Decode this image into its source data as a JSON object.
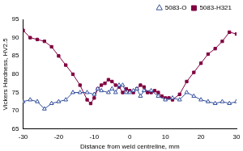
{
  "chart_data": {
    "type": "line",
    "x_label": "Distance from weld centreline, mm",
    "y_label": "Vickers Hardness, HV2.5",
    "xlim": [
      -30,
      30
    ],
    "xticks": [
      -30,
      -20,
      -10,
      0,
      10,
      20,
      30
    ],
    "ylim": [
      65,
      95
    ],
    "yticks": [
      65,
      70,
      75,
      80,
      85,
      90,
      95
    ],
    "grid": false,
    "legend": "top-right",
    "series": [
      {
        "name": "5083-O",
        "color": "#34509c",
        "marker": "triangle",
        "x": [
          -30,
          -28,
          -26,
          -24,
          -22,
          -20,
          -18,
          -16,
          -14,
          -12,
          -10,
          -9,
          -8,
          -6,
          -5,
          -4,
          -3,
          -2,
          -1,
          0,
          1,
          2,
          3,
          4,
          6,
          8,
          10,
          12,
          14,
          16,
          18,
          20,
          22,
          24,
          26,
          28,
          30
        ],
        "values": [
          72.5,
          73,
          72.5,
          70.5,
          72,
          72.5,
          73,
          75,
          75,
          75,
          74.5,
          76,
          75.5,
          75,
          76,
          75,
          77,
          77,
          75,
          75,
          75.5,
          76,
          74,
          75.5,
          75.5,
          74,
          73,
          73.5,
          73,
          75,
          74,
          73,
          72.5,
          72,
          72.5,
          72,
          72.5
        ]
      },
      {
        "name": "5083-H321",
        "color": "#800040",
        "marker": "square",
        "x": [
          -30,
          -28,
          -26,
          -24,
          -22,
          -20,
          -18,
          -16,
          -14,
          -12,
          -11,
          -10,
          -9,
          -8,
          -7,
          -6,
          -5,
          -4,
          -3,
          -2,
          -1,
          0,
          1,
          2,
          3,
          4,
          5,
          6,
          7,
          8,
          9,
          10,
          11,
          12,
          14,
          16,
          18,
          20,
          22,
          24,
          26,
          28,
          30
        ],
        "values": [
          92,
          90,
          89.5,
          89,
          87.5,
          85,
          82.5,
          80,
          77,
          73,
          72,
          73.5,
          76,
          77,
          77.5,
          78.5,
          78,
          77,
          76.5,
          75,
          76,
          75.5,
          75,
          76,
          77,
          76.5,
          75,
          75,
          75.5,
          75,
          74,
          73.5,
          73.5,
          73,
          74.5,
          78,
          80.5,
          83,
          85.5,
          87,
          89,
          91.5,
          91
        ]
      }
    ]
  }
}
